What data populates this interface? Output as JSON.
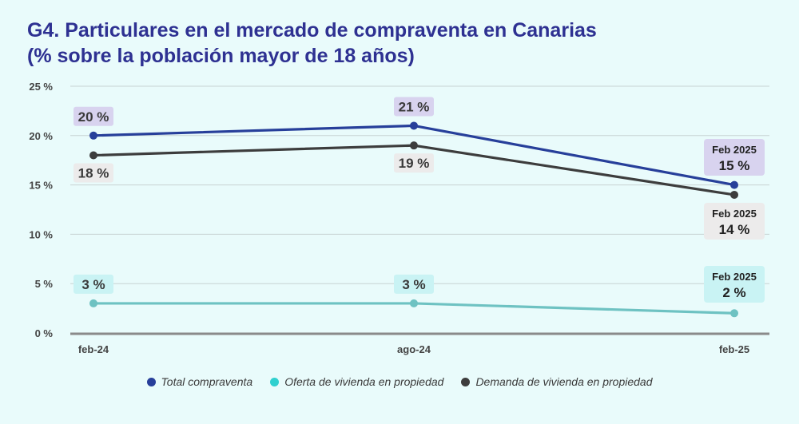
{
  "title": {
    "line1": "G4. Particulares en el mercado de compraventa en Canarias",
    "line2": "(% sobre la población mayor de 18 años)"
  },
  "chart_data": {
    "type": "line",
    "categories": [
      "feb-24",
      "ago-24",
      "feb-25"
    ],
    "series": [
      {
        "name": "Total compraventa",
        "values": [
          20,
          21,
          15
        ],
        "color": "#273f9a",
        "labels": [
          "20 %",
          "21 %",
          "15 %"
        ],
        "label_bg": "#d8d3ef",
        "last_label_title": "Feb 2025"
      },
      {
        "name": "Oferta de vivienda en propiedad",
        "values": [
          3,
          3,
          2
        ],
        "color": "#6ec2c2",
        "legend_color": "#2fd0cf",
        "labels": [
          "3 %",
          "3 %",
          "2 %"
        ],
        "label_bg": "#c9f3f4",
        "last_label_title": "Feb 2025"
      },
      {
        "name": "Demanda de vivienda en propiedad",
        "values": [
          18,
          19,
          14
        ],
        "color": "#3d3d3d",
        "labels": [
          "18 %",
          "19 %",
          "14 %"
        ],
        "label_bg": "#ecebeb",
        "last_label_title": "Feb 2025"
      }
    ],
    "y_ticks": [
      "0 %",
      "5 %",
      "10 %",
      "15 %",
      "20 %",
      "25 %"
    ],
    "ylim": [
      0,
      25
    ],
    "grid": true,
    "legend_position": "bottom"
  }
}
